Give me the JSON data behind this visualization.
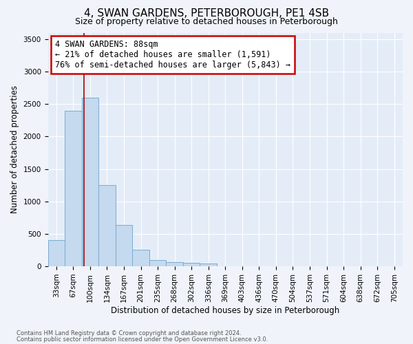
{
  "title": "4, SWAN GARDENS, PETERBOROUGH, PE1 4SB",
  "subtitle": "Size of property relative to detached houses in Peterborough",
  "xlabel": "Distribution of detached houses by size in Peterborough",
  "ylabel": "Number of detached properties",
  "footnote1": "Contains HM Land Registry data © Crown copyright and database right 2024.",
  "footnote2": "Contains public sector information licensed under the Open Government Licence v3.0.",
  "bar_labels": [
    "33sqm",
    "67sqm",
    "100sqm",
    "134sqm",
    "167sqm",
    "201sqm",
    "235sqm",
    "268sqm",
    "302sqm",
    "336sqm",
    "369sqm",
    "403sqm",
    "436sqm",
    "470sqm",
    "504sqm",
    "537sqm",
    "571sqm",
    "604sqm",
    "638sqm",
    "672sqm",
    "705sqm"
  ],
  "bar_values": [
    400,
    2400,
    2600,
    1250,
    640,
    260,
    100,
    60,
    55,
    40,
    0,
    0,
    0,
    0,
    0,
    0,
    0,
    0,
    0,
    0,
    0
  ],
  "bar_color": "#c5d9ef",
  "bar_edge_color": "#7aacce",
  "vline_x": 1.636,
  "vline_color": "#aa0000",
  "annotation_line1": "4 SWAN GARDENS: 88sqm",
  "annotation_line2": "← 21% of detached houses are smaller (1,591)",
  "annotation_line3": "76% of semi-detached houses are larger (5,843) →",
  "annotation_box_color": "#cc0000",
  "ylim": [
    0,
    3600
  ],
  "yticks": [
    0,
    500,
    1000,
    1500,
    2000,
    2500,
    3000,
    3500
  ],
  "background_color": "#f0f4fa",
  "plot_bg_color": "#e4edf7",
  "grid_color": "#ffffff",
  "title_fontsize": 11,
  "subtitle_fontsize": 9,
  "axis_label_fontsize": 8.5,
  "tick_fontsize": 7.5,
  "annot_fontsize": 8.5,
  "footnote_fontsize": 6.0
}
